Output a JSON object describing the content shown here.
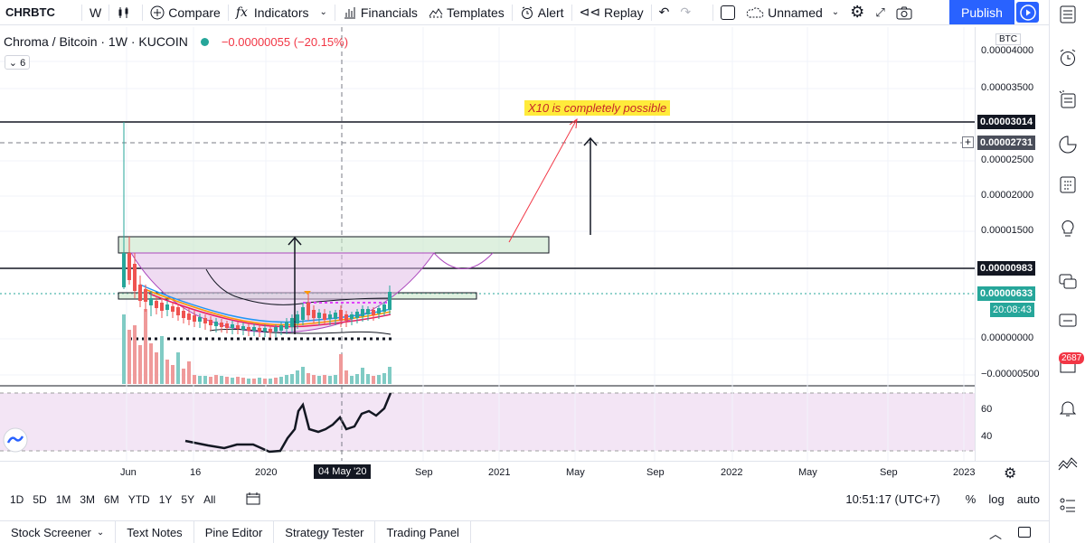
{
  "toolbar": {
    "symbol": "CHRBTC",
    "interval": "W",
    "compare": "Compare",
    "indicators": "Indicators",
    "financials": "Financials",
    "templates": "Templates",
    "alert": "Alert",
    "replay": "Replay",
    "layout_name": "Unnamed",
    "publish": "Publish"
  },
  "legend": {
    "title": "Chroma / Bitcoin · 1W · KUCOIN",
    "change": "−0.00000055 (−20.15%)",
    "collapse": "⌄ 6"
  },
  "annotation": "X10 is completely possible",
  "price_axis": {
    "currency": "BTC",
    "labels": [
      "0.00004000",
      "0.00003500",
      "0.00002500",
      "0.00002000",
      "0.00001500",
      "0.00000000",
      "−0.00000500"
    ],
    "tag_resistance": "0.00003014",
    "tag_cursor": "0.00002731",
    "tag_support": "0.00000983",
    "tag_last": "0.00000633",
    "countdown": "20:08:43"
  },
  "rsi_axis": [
    "60",
    "40"
  ],
  "time_axis": {
    "labels": [
      "Jun",
      "16",
      "2020",
      "Sep",
      "2021",
      "May",
      "Sep",
      "2022",
      "May",
      "Sep",
      "2023"
    ],
    "cursor": "04 May '20"
  },
  "ranges": [
    "1D",
    "5D",
    "1M",
    "3M",
    "6M",
    "YTD",
    "1Y",
    "5Y",
    "All"
  ],
  "status": {
    "clock": "10:51:17 (UTC+7)",
    "percent": "%",
    "log": "log",
    "auto": "auto"
  },
  "bottom_tabs": [
    "Stock Screener",
    "Text Notes",
    "Pine Editor",
    "Strategy Tester",
    "Trading Panel"
  ],
  "sidebar": {
    "notifications": "2687"
  },
  "colors": {
    "accent": "#2962ff",
    "up": "#26a69a",
    "down": "#ef5350",
    "annotation_bg": "#ffeb3b"
  }
}
